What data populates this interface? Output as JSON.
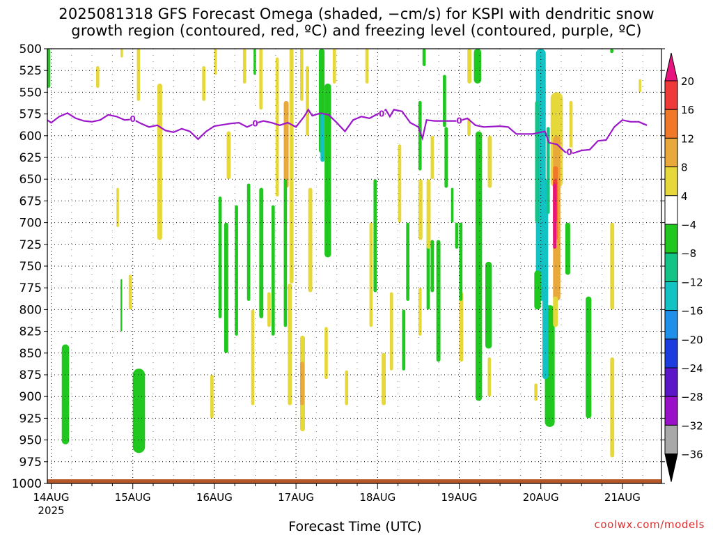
{
  "header": {
    "title_line1": "2025081318 GFS Forecast Omega (shaded, −cm/s) for KSPI with dendritic snow",
    "title_line2": "growth region (contoured, red, ºC) and freezing level (contoured, purple, ºC)"
  },
  "footer": {
    "xlabel": "Forecast Time (UTC)",
    "credit": "coolwx.com/models"
  },
  "chart_data": {
    "type": "heatmap",
    "title": "2025081318 GFS Forecast Omega (shaded, −cm/s) for KSPI with dendritic snow growth region (contoured, red, ºC) and freezing level (contoured, purple, ºC)",
    "xlabel": "Forecast Time (UTC)",
    "ylabel": "",
    "x_range_days": [
      -0.08,
      7.3
    ],
    "x_ticks": [
      {
        "day": 0,
        "label": "14AUG"
      },
      {
        "day": 1,
        "label": "15AUG"
      },
      {
        "day": 2,
        "label": "16AUG"
      },
      {
        "day": 3,
        "label": "17AUG"
      },
      {
        "day": 4,
        "label": "18AUG"
      },
      {
        "day": 5,
        "label": "19AUG"
      },
      {
        "day": 6,
        "label": "20AUG"
      },
      {
        "day": 7,
        "label": "21AUG"
      }
    ],
    "x_year_label": "2025",
    "y_range_hpa": [
      500,
      1000
    ],
    "y_ticks": [
      500,
      525,
      550,
      575,
      600,
      625,
      650,
      675,
      700,
      725,
      750,
      775,
      800,
      825,
      850,
      875,
      900,
      925,
      950,
      975,
      1000
    ],
    "grid": "dotted",
    "colorbar": {
      "labels": [
        "20",
        "16",
        "12",
        "8",
        "4",
        "−4",
        "−8",
        "−12",
        "−16",
        "−20",
        "−24",
        "−28",
        "−32",
        "−36"
      ],
      "bins": [
        {
          "range": ">20",
          "color": "#e8137e"
        },
        {
          "range": "16-20",
          "color": "#f03a3a"
        },
        {
          "range": "12-16",
          "color": "#f07828"
        },
        {
          "range": "8-12",
          "color": "#e8a83a"
        },
        {
          "range": "4-8",
          "color": "#e6d83a"
        },
        {
          "range": "-4-4",
          "color": "#ffffff"
        },
        {
          "range": "-8--4",
          "color": "#1fc71f"
        },
        {
          "range": "-12--8",
          "color": "#14c487"
        },
        {
          "range": "-16--12",
          "color": "#13c2c2"
        },
        {
          "range": "-20--16",
          "color": "#1e90ea"
        },
        {
          "range": "-24--20",
          "color": "#1c3ce0"
        },
        {
          "range": "-28--24",
          "color": "#5a16c8"
        },
        {
          "range": "-32--28",
          "color": "#9a10c8"
        },
        {
          "range": "-36--32",
          "color": "#a8a8a8"
        },
        {
          "range": "<-36",
          "color": "#000000"
        }
      ]
    },
    "freezing_level": {
      "label": "0",
      "color": "#9b17c9",
      "points": [
        [
          -0.08,
          580
        ],
        [
          0.0,
          585
        ],
        [
          0.1,
          578
        ],
        [
          0.2,
          574
        ],
        [
          0.3,
          580
        ],
        [
          0.4,
          583
        ],
        [
          0.5,
          584
        ],
        [
          0.6,
          582
        ],
        [
          0.7,
          576
        ],
        [
          0.8,
          578
        ],
        [
          0.9,
          582
        ],
        [
          1.0,
          581
        ],
        [
          1.1,
          586
        ],
        [
          1.2,
          590
        ],
        [
          1.3,
          588
        ],
        [
          1.4,
          594
        ],
        [
          1.5,
          596
        ],
        [
          1.6,
          592
        ],
        [
          1.7,
          595
        ],
        [
          1.8,
          604
        ],
        [
          1.9,
          595
        ],
        [
          2.0,
          589
        ],
        [
          2.2,
          586
        ],
        [
          2.3,
          585
        ],
        [
          2.4,
          590
        ],
        [
          2.5,
          586
        ],
        [
          2.6,
          583
        ],
        [
          2.7,
          585
        ],
        [
          2.8,
          588
        ],
        [
          2.9,
          585
        ],
        [
          3.0,
          590
        ],
        [
          3.1,
          578
        ],
        [
          3.15,
          570
        ],
        [
          3.2,
          577
        ],
        [
          3.3,
          574
        ],
        [
          3.4,
          576
        ],
        [
          3.5,
          585
        ],
        [
          3.6,
          595
        ],
        [
          3.7,
          582
        ],
        [
          3.8,
          578
        ],
        [
          3.9,
          580
        ],
        [
          4.0,
          575
        ],
        [
          4.1,
          570
        ],
        [
          4.15,
          578
        ],
        [
          4.2,
          570
        ],
        [
          4.3,
          572
        ],
        [
          4.4,
          585
        ],
        [
          4.5,
          590
        ],
        [
          4.55,
          603
        ],
        [
          4.6,
          582
        ],
        [
          4.7,
          583
        ],
        [
          5.0,
          583
        ],
        [
          5.1,
          580
        ],
        [
          5.2,
          588
        ],
        [
          5.3,
          590
        ],
        [
          5.5,
          589
        ],
        [
          5.6,
          590
        ],
        [
          5.7,
          598
        ],
        [
          5.9,
          598
        ],
        [
          6.0,
          596
        ],
        [
          6.05,
          595
        ],
        [
          6.1,
          608
        ],
        [
          6.2,
          610
        ],
        [
          6.3,
          619
        ],
        [
          6.4,
          620
        ],
        [
          6.5,
          617
        ],
        [
          6.6,
          616
        ],
        [
          6.7,
          606
        ],
        [
          6.8,
          605
        ],
        [
          6.9,
          590
        ],
        [
          7.0,
          582
        ],
        [
          7.1,
          584
        ],
        [
          7.2,
          584
        ],
        [
          7.3,
          588
        ]
      ]
    },
    "surface_terrain_color": "#b4582a",
    "shaded_regions": [
      {
        "color": "#e6d83a",
        "day": -0.08,
        "width": 0.04,
        "p_top": 500,
        "p_bot": 505
      },
      {
        "color": "#1fc71f",
        "day": -0.06,
        "width": 0.05,
        "p_top": 500,
        "p_bot": 545
      },
      {
        "color": "#e6d83a",
        "day": 0.55,
        "width": 0.04,
        "p_top": 520,
        "p_bot": 545
      },
      {
        "color": "#e6d83a",
        "day": 0.85,
        "width": 0.03,
        "p_top": 500,
        "p_bot": 510
      },
      {
        "color": "#e6d83a",
        "day": 1.05,
        "width": 0.04,
        "p_top": 500,
        "p_bot": 560
      },
      {
        "color": "#e6d83a",
        "day": 1.3,
        "width": 0.06,
        "p_top": 540,
        "p_bot": 720
      },
      {
        "color": "#e6d83a",
        "day": 0.8,
        "width": 0.03,
        "p_top": 660,
        "p_bot": 705
      },
      {
        "color": "#e6d83a",
        "day": 0.95,
        "width": 0.04,
        "p_top": 760,
        "p_bot": 800
      },
      {
        "color": "#1fc71f",
        "day": 0.85,
        "width": 0.02,
        "p_top": 765,
        "p_bot": 825
      },
      {
        "color": "#1fc71f",
        "day": 0.13,
        "width": 0.09,
        "p_top": 840,
        "p_bot": 955
      },
      {
        "color": "#1fc71f",
        "day": 1.0,
        "width": 0.15,
        "p_top": 868,
        "p_bot": 965
      },
      {
        "color": "#e6d83a",
        "day": 1.85,
        "width": 0.04,
        "p_top": 520,
        "p_bot": 560
      },
      {
        "color": "#e6d83a",
        "day": 2.0,
        "width": 0.03,
        "p_top": 500,
        "p_bot": 530
      },
      {
        "color": "#e6d83a",
        "day": 2.15,
        "width": 0.05,
        "p_top": 595,
        "p_bot": 650
      },
      {
        "color": "#e6d83a",
        "day": 2.35,
        "width": 0.04,
        "p_top": 500,
        "p_bot": 540
      },
      {
        "color": "#1fc71f",
        "day": 2.48,
        "width": 0.03,
        "p_top": 500,
        "p_bot": 530
      },
      {
        "color": "#e6d83a",
        "day": 2.55,
        "width": 0.04,
        "p_top": 500,
        "p_bot": 570
      },
      {
        "color": "#1fc71f",
        "day": 2.05,
        "width": 0.04,
        "p_top": 670,
        "p_bot": 810
      },
      {
        "color": "#1fc71f",
        "day": 2.12,
        "width": 0.05,
        "p_top": 700,
        "p_bot": 850
      },
      {
        "color": "#1fc71f",
        "day": 2.25,
        "width": 0.04,
        "p_top": 680,
        "p_bot": 830
      },
      {
        "color": "#1fc71f",
        "day": 2.4,
        "width": 0.04,
        "p_top": 655,
        "p_bot": 790
      },
      {
        "color": "#1fc71f",
        "day": 2.55,
        "width": 0.05,
        "p_top": 660,
        "p_bot": 810
      },
      {
        "color": "#1fc71f",
        "day": 2.7,
        "width": 0.04,
        "p_top": 680,
        "p_bot": 830
      },
      {
        "color": "#e6d83a",
        "day": 1.95,
        "width": 0.04,
        "p_top": 875,
        "p_bot": 925
      },
      {
        "color": "#e6d83a",
        "day": 2.45,
        "width": 0.04,
        "p_top": 800,
        "p_bot": 910
      },
      {
        "color": "#e6d83a",
        "day": 2.65,
        "width": 0.04,
        "p_top": 780,
        "p_bot": 820
      },
      {
        "color": "#e6d83a",
        "day": 2.75,
        "width": 0.04,
        "p_top": 510,
        "p_bot": 670
      },
      {
        "color": "#e8a83a",
        "day": 2.85,
        "width": 0.06,
        "p_top": 560,
        "p_bot": 660
      },
      {
        "color": "#e6d83a",
        "day": 2.92,
        "width": 0.05,
        "p_top": 500,
        "p_bot": 770
      },
      {
        "color": "#1fc71f",
        "day": 2.85,
        "width": 0.04,
        "p_top": 650,
        "p_bot": 820
      },
      {
        "color": "#e6d83a",
        "day": 3.05,
        "width": 0.04,
        "p_top": 500,
        "p_bot": 560
      },
      {
        "color": "#1fc71f",
        "day": 3.28,
        "width": 0.07,
        "p_top": 500,
        "p_bot": 620
      },
      {
        "color": "#13c2c2",
        "day": 3.3,
        "width": 0.05,
        "p_top": 575,
        "p_bot": 630
      },
      {
        "color": "#1fc71f",
        "day": 3.35,
        "width": 0.08,
        "p_top": 540,
        "p_bot": 740
      },
      {
        "color": "#e6d83a",
        "day": 3.12,
        "width": 0.04,
        "p_top": 520,
        "p_bot": 600
      },
      {
        "color": "#e6d83a",
        "day": 3.45,
        "width": 0.04,
        "p_top": 500,
        "p_bot": 540
      },
      {
        "color": "#e6d83a",
        "day": 3.15,
        "width": 0.05,
        "p_top": 660,
        "p_bot": 780
      },
      {
        "color": "#e6d83a",
        "day": 3.05,
        "width": 0.06,
        "p_top": 830,
        "p_bot": 940
      },
      {
        "color": "#e8a83a",
        "day": 3.05,
        "width": 0.05,
        "p_top": 860,
        "p_bot": 910
      },
      {
        "color": "#e6d83a",
        "day": 2.9,
        "width": 0.05,
        "p_top": 770,
        "p_bot": 910
      },
      {
        "color": "#e6d83a",
        "day": 3.35,
        "width": 0.04,
        "p_top": 820,
        "p_bot": 880
      },
      {
        "color": "#e6d83a",
        "day": 3.6,
        "width": 0.04,
        "p_top": 870,
        "p_bot": 910
      },
      {
        "color": "#e6d83a",
        "day": 3.9,
        "width": 0.04,
        "p_top": 700,
        "p_bot": 820
      },
      {
        "color": "#e6d83a",
        "day": 3.85,
        "width": 0.04,
        "p_top": 500,
        "p_bot": 540
      },
      {
        "color": "#e6d83a",
        "day": 4.25,
        "width": 0.04,
        "p_top": 610,
        "p_bot": 700
      },
      {
        "color": "#e6d83a",
        "day": 4.15,
        "width": 0.04,
        "p_top": 780,
        "p_bot": 870
      },
      {
        "color": "#e6d83a",
        "day": 4.05,
        "width": 0.05,
        "p_top": 850,
        "p_bot": 910
      },
      {
        "color": "#1fc71f",
        "day": 4.35,
        "width": 0.04,
        "p_top": 700,
        "p_bot": 790
      },
      {
        "color": "#1fc71f",
        "day": 4.3,
        "width": 0.04,
        "p_top": 800,
        "p_bot": 870
      },
      {
        "color": "#1fc71f",
        "day": 3.95,
        "width": 0.04,
        "p_top": 650,
        "p_bot": 780
      },
      {
        "color": "#1fc71f",
        "day": 4.5,
        "width": 0.04,
        "p_top": 560,
        "p_bot": 640
      },
      {
        "color": "#1fc71f",
        "day": 4.6,
        "width": 0.04,
        "p_top": 700,
        "p_bot": 800
      },
      {
        "color": "#e6d83a",
        "day": 4.65,
        "width": 0.04,
        "p_top": 600,
        "p_bot": 650
      },
      {
        "color": "#e6d83a",
        "day": 4.5,
        "width": 0.04,
        "p_top": 775,
        "p_bot": 830
      },
      {
        "color": "#e6d83a",
        "day": 5.1,
        "width": 0.05,
        "p_top": 500,
        "p_bot": 540
      },
      {
        "color": "#1fc71f",
        "day": 4.55,
        "width": 0.04,
        "p_top": 500,
        "p_bot": 520
      },
      {
        "color": "#1fc71f",
        "day": 4.65,
        "width": 0.04,
        "p_top": 720,
        "p_bot": 780
      },
      {
        "color": "#1fc71f",
        "day": 4.72,
        "width": 0.05,
        "p_top": 720,
        "p_bot": 860
      },
      {
        "color": "#e6d83a",
        "day": 4.5,
        "width": 0.05,
        "p_top": 650,
        "p_bot": 720
      },
      {
        "color": "#1fc71f",
        "day": 4.95,
        "width": 0.04,
        "p_top": 700,
        "p_bot": 730
      },
      {
        "color": "#e6d83a",
        "day": 5.0,
        "width": 0.05,
        "p_top": 780,
        "p_bot": 860
      },
      {
        "color": "#e6d83a",
        "day": 5.1,
        "width": 0.04,
        "p_top": 580,
        "p_bot": 600
      },
      {
        "color": "#e6d83a",
        "day": 4.6,
        "width": 0.05,
        "p_top": 650,
        "p_bot": 730
      },
      {
        "color": "#1fc71f",
        "day": 4.8,
        "width": 0.04,
        "p_top": 530,
        "p_bot": 590
      },
      {
        "color": "#1fc71f",
        "day": 4.82,
        "width": 0.04,
        "p_top": 590,
        "p_bot": 660
      },
      {
        "color": "#1fc71f",
        "day": 4.9,
        "width": 0.03,
        "p_top": 660,
        "p_bot": 700
      },
      {
        "color": "#1fc71f",
        "day": 5.0,
        "width": 0.04,
        "p_top": 700,
        "p_bot": 790
      },
      {
        "color": "#1fc71f",
        "day": 5.18,
        "width": 0.09,
        "p_top": 500,
        "p_bot": 540
      },
      {
        "color": "#1fc71f",
        "day": 5.2,
        "width": 0.08,
        "p_top": 595,
        "p_bot": 905
      },
      {
        "color": "#1fc71f",
        "day": 5.32,
        "width": 0.08,
        "p_top": 745,
        "p_bot": 845
      },
      {
        "color": "#e6d83a",
        "day": 5.35,
        "width": 0.05,
        "p_top": 600,
        "p_bot": 660
      },
      {
        "color": "#e6d83a",
        "day": 5.35,
        "width": 0.04,
        "p_top": 855,
        "p_bot": 900
      },
      {
        "color": "#13c2c2",
        "day": 5.94,
        "width": 0.12,
        "p_top": 500,
        "p_bot": 790
      },
      {
        "color": "#14c487",
        "day": 5.93,
        "width": 0.05,
        "p_top": 560,
        "p_bot": 700
      },
      {
        "color": "#1fc71f",
        "day": 5.92,
        "width": 0.08,
        "p_top": 755,
        "p_bot": 800
      },
      {
        "color": "#1fc71f",
        "day": 6.05,
        "width": 0.12,
        "p_top": 795,
        "p_bot": 935
      },
      {
        "color": "#13c2c2",
        "day": 6.02,
        "width": 0.07,
        "p_top": 650,
        "p_bot": 880
      },
      {
        "color": "#14c487",
        "day": 6.07,
        "width": 0.04,
        "p_top": 590,
        "p_bot": 690
      },
      {
        "color": "#e6d83a",
        "day": 6.12,
        "width": 0.15,
        "p_top": 550,
        "p_bot": 660
      },
      {
        "color": "#e8a83a",
        "day": 6.15,
        "width": 0.09,
        "p_top": 600,
        "p_bot": 790
      },
      {
        "color": "#f07828",
        "day": 6.15,
        "width": 0.06,
        "p_top": 635,
        "p_bot": 720
      },
      {
        "color": "#f03a3a",
        "day": 6.15,
        "width": 0.05,
        "p_top": 650,
        "p_bot": 700
      },
      {
        "color": "#e8137e",
        "day": 6.15,
        "width": 0.04,
        "p_top": 655,
        "p_bot": 730
      },
      {
        "color": "#e6d83a",
        "day": 6.15,
        "width": 0.06,
        "p_top": 785,
        "p_bot": 820
      },
      {
        "color": "#e6d83a",
        "day": 6.35,
        "width": 0.04,
        "p_top": 560,
        "p_bot": 620
      },
      {
        "color": "#1fc71f",
        "day": 6.3,
        "width": 0.06,
        "p_top": 700,
        "p_bot": 760
      },
      {
        "color": "#e6d83a",
        "day": 5.92,
        "width": 0.04,
        "p_top": 885,
        "p_bot": 905
      },
      {
        "color": "#1fc71f",
        "day": 6.55,
        "width": 0.07,
        "p_top": 785,
        "p_bot": 925
      },
      {
        "color": "#e6d83a",
        "day": 6.85,
        "width": 0.05,
        "p_top": 700,
        "p_bot": 800
      },
      {
        "color": "#e6d83a",
        "day": 6.85,
        "width": 0.05,
        "p_top": 855,
        "p_bot": 970
      },
      {
        "color": "#1fc71f",
        "day": 6.85,
        "width": 0.04,
        "p_top": 500,
        "p_bot": 505
      },
      {
        "color": "#e6d83a",
        "day": 7.2,
        "width": 0.03,
        "p_top": 535,
        "p_bot": 550
      }
    ]
  }
}
